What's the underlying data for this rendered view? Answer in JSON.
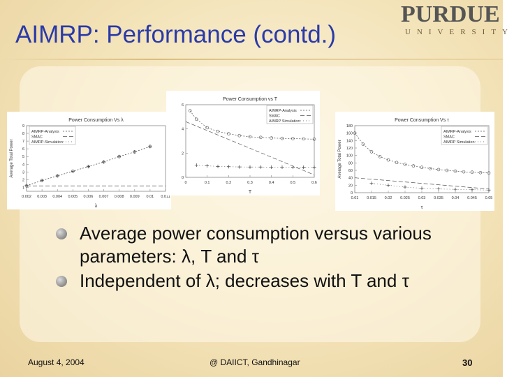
{
  "slide": {
    "title": "AIMRP: Performance (contd.)",
    "logo": {
      "main": "PURDUE",
      "sub": "UNIVERSITY"
    },
    "bullets": [
      "Average power consumption versus various parameters: λ, T and τ",
      "Independent of λ; decreases with T and τ"
    ],
    "footer": {
      "date": "August 4, 2004",
      "venue": "@ DAIICT, Gandhinagar",
      "page": "30"
    }
  },
  "chart_data": [
    {
      "type": "line",
      "title": "Power Consumption Vs λ",
      "xlabel": "λ",
      "ylabel": "Average Total Power",
      "x_ticks": [
        "0.002",
        "0.003",
        "0.004",
        "0.005",
        "0.006",
        "0.007",
        "0.008",
        "0.009",
        "0.01",
        "0.011"
      ],
      "y_ticks": [
        "1",
        "2",
        "3",
        "4",
        "5",
        "6",
        "7",
        "8",
        "9"
      ],
      "xlim": [
        0.002,
        0.011
      ],
      "ylim": [
        0.5,
        9
      ],
      "legend": [
        "AIMRP-Analysis",
        "SMAC",
        "AIMRP-Simulation"
      ],
      "series": [
        {
          "name": "AIMRP-Analysis",
          "x": [
            0.002,
            0.003,
            0.004,
            0.005,
            0.006,
            0.007,
            0.008,
            0.009,
            0.01
          ],
          "values": [
            1.2,
            1.9,
            2.5,
            3.1,
            3.7,
            4.3,
            5.0,
            5.6,
            6.3
          ]
        },
        {
          "name": "SMAC",
          "x": [
            0.002,
            0.011
          ],
          "values": [
            1.2,
            1.2
          ]
        },
        {
          "name": "AIMRP-Simulation",
          "x": [
            0.002,
            0.003,
            0.004,
            0.005,
            0.006,
            0.007,
            0.008,
            0.009,
            0.01
          ],
          "values": [
            1.25,
            1.9,
            2.5,
            3.1,
            3.7,
            4.3,
            5.0,
            5.6,
            6.3
          ]
        }
      ]
    },
    {
      "type": "line",
      "title": "Power Consumption vs T",
      "xlabel": "T",
      "ylabel": "",
      "x_ticks": [
        "0",
        "0.1",
        "0.2",
        "0.3",
        "0.4",
        "0.5",
        "0.6"
      ],
      "y_ticks": [
        "0",
        "2",
        "4",
        "6"
      ],
      "xlim": [
        0,
        0.6
      ],
      "ylim": [
        0,
        6
      ],
      "legend": [
        "AIMRP-Analysis",
        "SMAC",
        "AIMRP Simulation"
      ],
      "series": [
        {
          "name": "AIMRP-Analysis",
          "x": [
            0.02,
            0.05,
            0.1,
            0.15,
            0.2,
            0.25,
            0.3,
            0.35,
            0.4,
            0.45,
            0.5,
            0.55,
            0.6
          ],
          "values": [
            5.5,
            4.8,
            4.1,
            3.8,
            3.6,
            3.45,
            3.35,
            3.3,
            3.25,
            3.22,
            3.2,
            3.18,
            3.15
          ]
        },
        {
          "name": "SMAC",
          "x": [
            0.0,
            0.6
          ],
          "values": [
            4.6,
            0.2
          ]
        },
        {
          "name": "AIMRP Simulation",
          "x": [
            0.05,
            0.1,
            0.15,
            0.2,
            0.25,
            0.3,
            0.35,
            0.4,
            0.45,
            0.5,
            0.55,
            0.6
          ],
          "values": [
            1.0,
            0.95,
            0.9,
            0.88,
            0.86,
            0.85,
            0.85,
            0.84,
            0.84,
            0.83,
            0.83,
            0.83
          ]
        }
      ]
    },
    {
      "type": "line",
      "title": "Power Consumption Vs τ",
      "xlabel": "τ",
      "ylabel": "Average Total Power",
      "x_ticks": [
        "0.01",
        "0.015",
        "0.02",
        "0.025",
        "0.03",
        "0.035",
        "0.04",
        "0.045",
        "0.05"
      ],
      "y_ticks": [
        "0",
        "20",
        "40",
        "60",
        "80",
        "100",
        "120",
        "140",
        "160",
        "180"
      ],
      "xlim": [
        0.01,
        0.05
      ],
      "ylim": [
        0,
        180
      ],
      "legend": [
        "AIMRP-Analysis",
        "SMAC",
        "AIMRP Simulation"
      ],
      "series": [
        {
          "name": "AIMRP-Analysis",
          "x": [
            0.01,
            0.0125,
            0.015,
            0.0175,
            0.02,
            0.0225,
            0.025,
            0.0275,
            0.03,
            0.0325,
            0.035,
            0.0375,
            0.04,
            0.0425,
            0.045,
            0.0475,
            0.05
          ],
          "values": [
            160,
            130,
            110,
            97,
            88,
            81,
            76,
            72,
            68,
            65,
            62,
            60,
            58,
            56,
            55,
            54,
            53
          ]
        },
        {
          "name": "SMAC",
          "x": [
            0.01,
            0.05
          ],
          "values": [
            40,
            10
          ]
        },
        {
          "name": "AIMRP Simulation",
          "x": [
            0.015,
            0.02,
            0.025,
            0.03,
            0.035,
            0.04,
            0.045,
            0.05
          ],
          "values": [
            25,
            20,
            15,
            12,
            10,
            9,
            8,
            7
          ]
        }
      ]
    }
  ]
}
